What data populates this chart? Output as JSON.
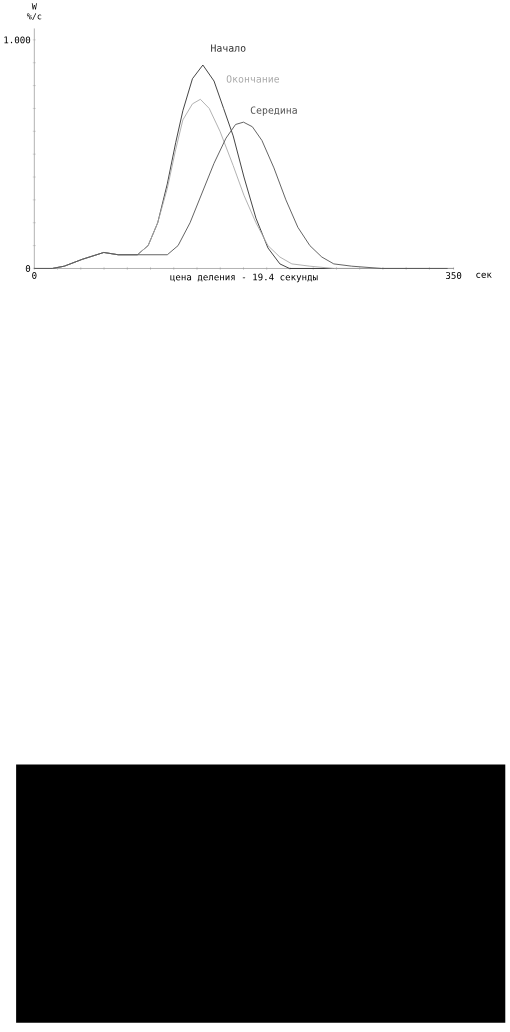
{
  "chart_data": {
    "type": "line",
    "ylabel": "W %/с",
    "xlabel": "цена деления - 19.4 секунды",
    "annotations": [
      "сек"
    ],
    "xlim": [
      0,
      350
    ],
    "ylim": [
      0,
      1.05
    ],
    "xticks": [
      0,
      {
        "value": 19.4,
        "label": null
      },
      {
        "value": 38.8,
        "label": null
      },
      {
        "value": 58.2,
        "label": null
      },
      {
        "value": 77.6,
        "label": null
      },
      {
        "value": 97,
        "label": null
      },
      {
        "value": 116.4,
        "label": null
      },
      {
        "value": 135.8,
        "label": null
      },
      {
        "value": 155.2,
        "label": null
      },
      {
        "value": 174.6,
        "label": null
      },
      {
        "value": 194,
        "label": null
      },
      {
        "value": 213.4,
        "label": null
      },
      {
        "value": 232.8,
        "label": null
      },
      {
        "value": 252.2,
        "label": null
      },
      {
        "value": 271.6,
        "label": null
      },
      {
        "value": 291,
        "label": null
      },
      {
        "value": 310.4,
        "label": null
      },
      {
        "value": 329.8,
        "label": null
      },
      350
    ],
    "yticks": [
      0,
      {
        "value": 0.1,
        "label": null
      },
      {
        "value": 0.2,
        "label": null
      },
      {
        "value": 0.3,
        "label": null
      },
      {
        "value": 0.4,
        "label": null
      },
      {
        "value": 0.5,
        "label": null
      },
      {
        "value": 0.6,
        "label": null
      },
      {
        "value": 0.7,
        "label": null
      },
      {
        "value": 0.8,
        "label": null
      },
      {
        "value": 0.9,
        "label": null
      },
      {
        "value": 1,
        "label": "1.000"
      }
    ],
    "grid": false,
    "legend": false,
    "line_style": "solid",
    "series": [
      {
        "name": "Начало",
        "color": "#333333",
        "x": [
          0,
          15,
          25,
          40,
          58,
          70,
          86,
          95,
          103,
          111,
          118,
          124,
          132,
          140.7,
          150,
          158,
          166,
          175,
          185,
          195,
          205,
          213,
          350
        ],
        "values": [
          0,
          0,
          0.01,
          0.04,
          0.07,
          0.06,
          0.06,
          0.1,
          0.2,
          0.37,
          0.55,
          0.69,
          0.83,
          0.89,
          0.82,
          0.7,
          0.58,
          0.4,
          0.22,
          0.09,
          0.02,
          0,
          0
        ]
      },
      {
        "name": "Окончание",
        "color": "#aaaaaa",
        "x": [
          0,
          15,
          25,
          40,
          58,
          70,
          86,
          95,
          103,
          111,
          118,
          124,
          132,
          138.6,
          146,
          155,
          166,
          175,
          185,
          195,
          205,
          215,
          230,
          250,
          350
        ],
        "values": [
          0,
          0,
          0.01,
          0.04,
          0.07,
          0.06,
          0.06,
          0.1,
          0.2,
          0.35,
          0.52,
          0.65,
          0.72,
          0.74,
          0.7,
          0.6,
          0.45,
          0.32,
          0.2,
          0.1,
          0.05,
          0.02,
          0.01,
          0,
          0
        ]
      },
      {
        "name": "Середина",
        "color": "#555555",
        "x": [
          0,
          15,
          25,
          40,
          58,
          70,
          111,
          120,
          130,
          140,
          150,
          160,
          168,
          174.6,
          182,
          190,
          200,
          210,
          220,
          230,
          240,
          250,
          265,
          290,
          330,
          345
        ],
        "values": [
          0,
          0,
          0.01,
          0.04,
          0.07,
          0.06,
          0.06,
          0.1,
          0.2,
          0.33,
          0.46,
          0.57,
          0.63,
          0.64,
          0.62,
          0.56,
          0.44,
          0.3,
          0.18,
          0.1,
          0.05,
          0.02,
          0.01,
          0,
          0,
          0
        ]
      }
    ]
  }
}
